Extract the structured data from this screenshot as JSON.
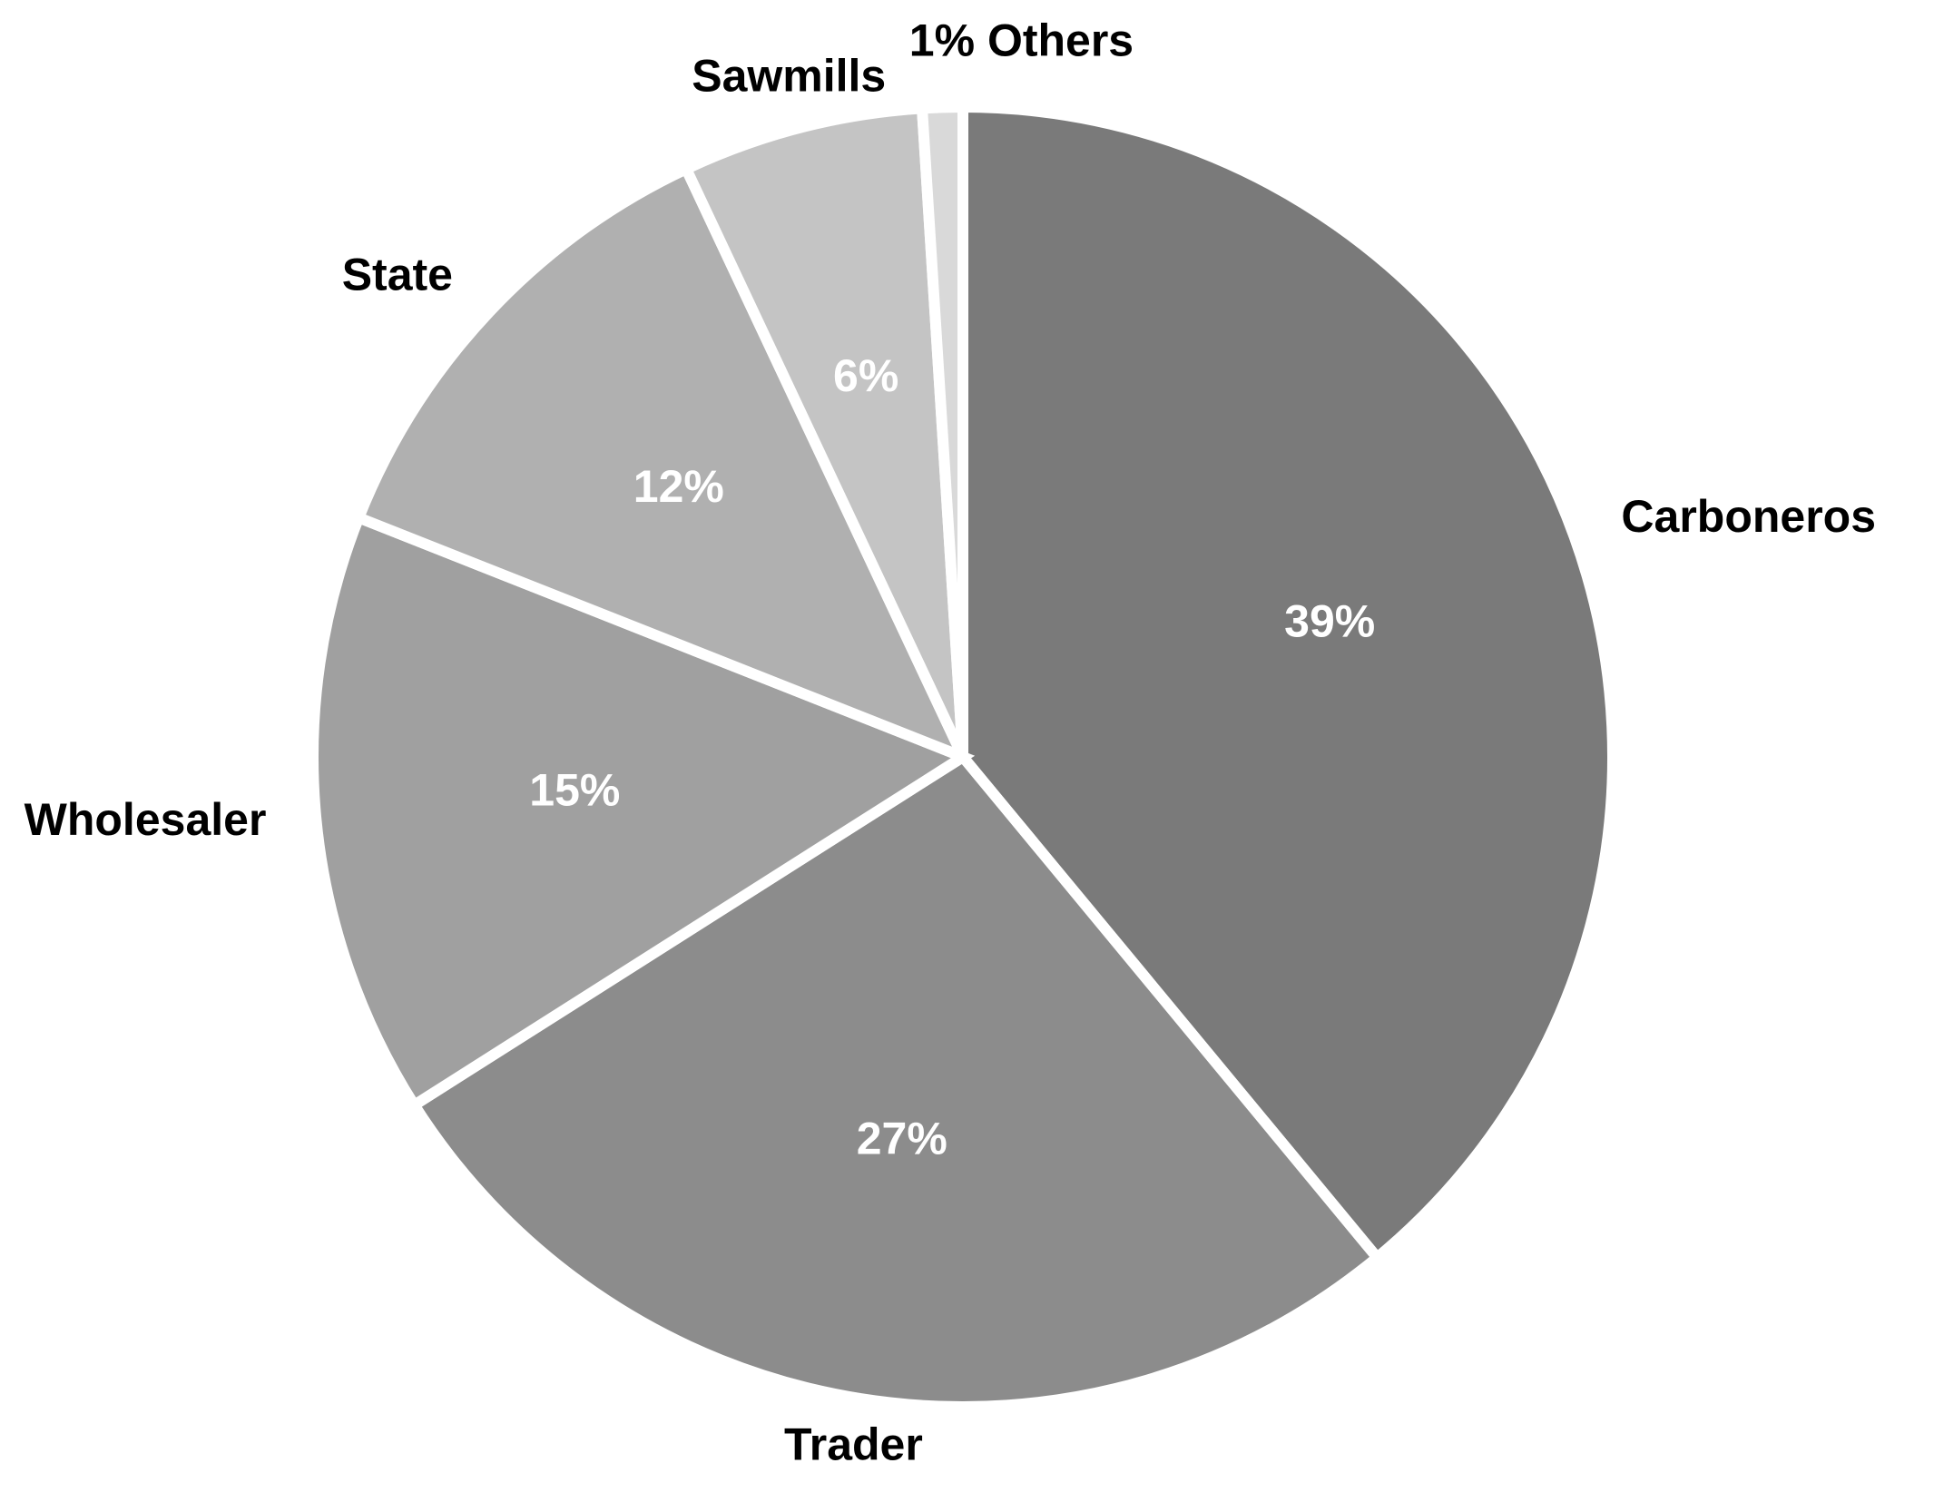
{
  "chart_data": {
    "type": "pie",
    "categories": [
      "Carboneros",
      "Trader",
      "Wholesaler",
      "State",
      "Sawmills",
      "Others"
    ],
    "values": [
      39,
      27,
      15,
      12,
      6,
      1
    ],
    "value_labels": [
      "39%",
      "27%",
      "15%",
      "12%",
      "6%",
      "1%"
    ],
    "colors": [
      "#7a7a7a",
      "#8c8c8c",
      "#a0a0a0",
      "#b0b0b0",
      "#c4c4c4",
      "#d9d9d9"
    ]
  }
}
